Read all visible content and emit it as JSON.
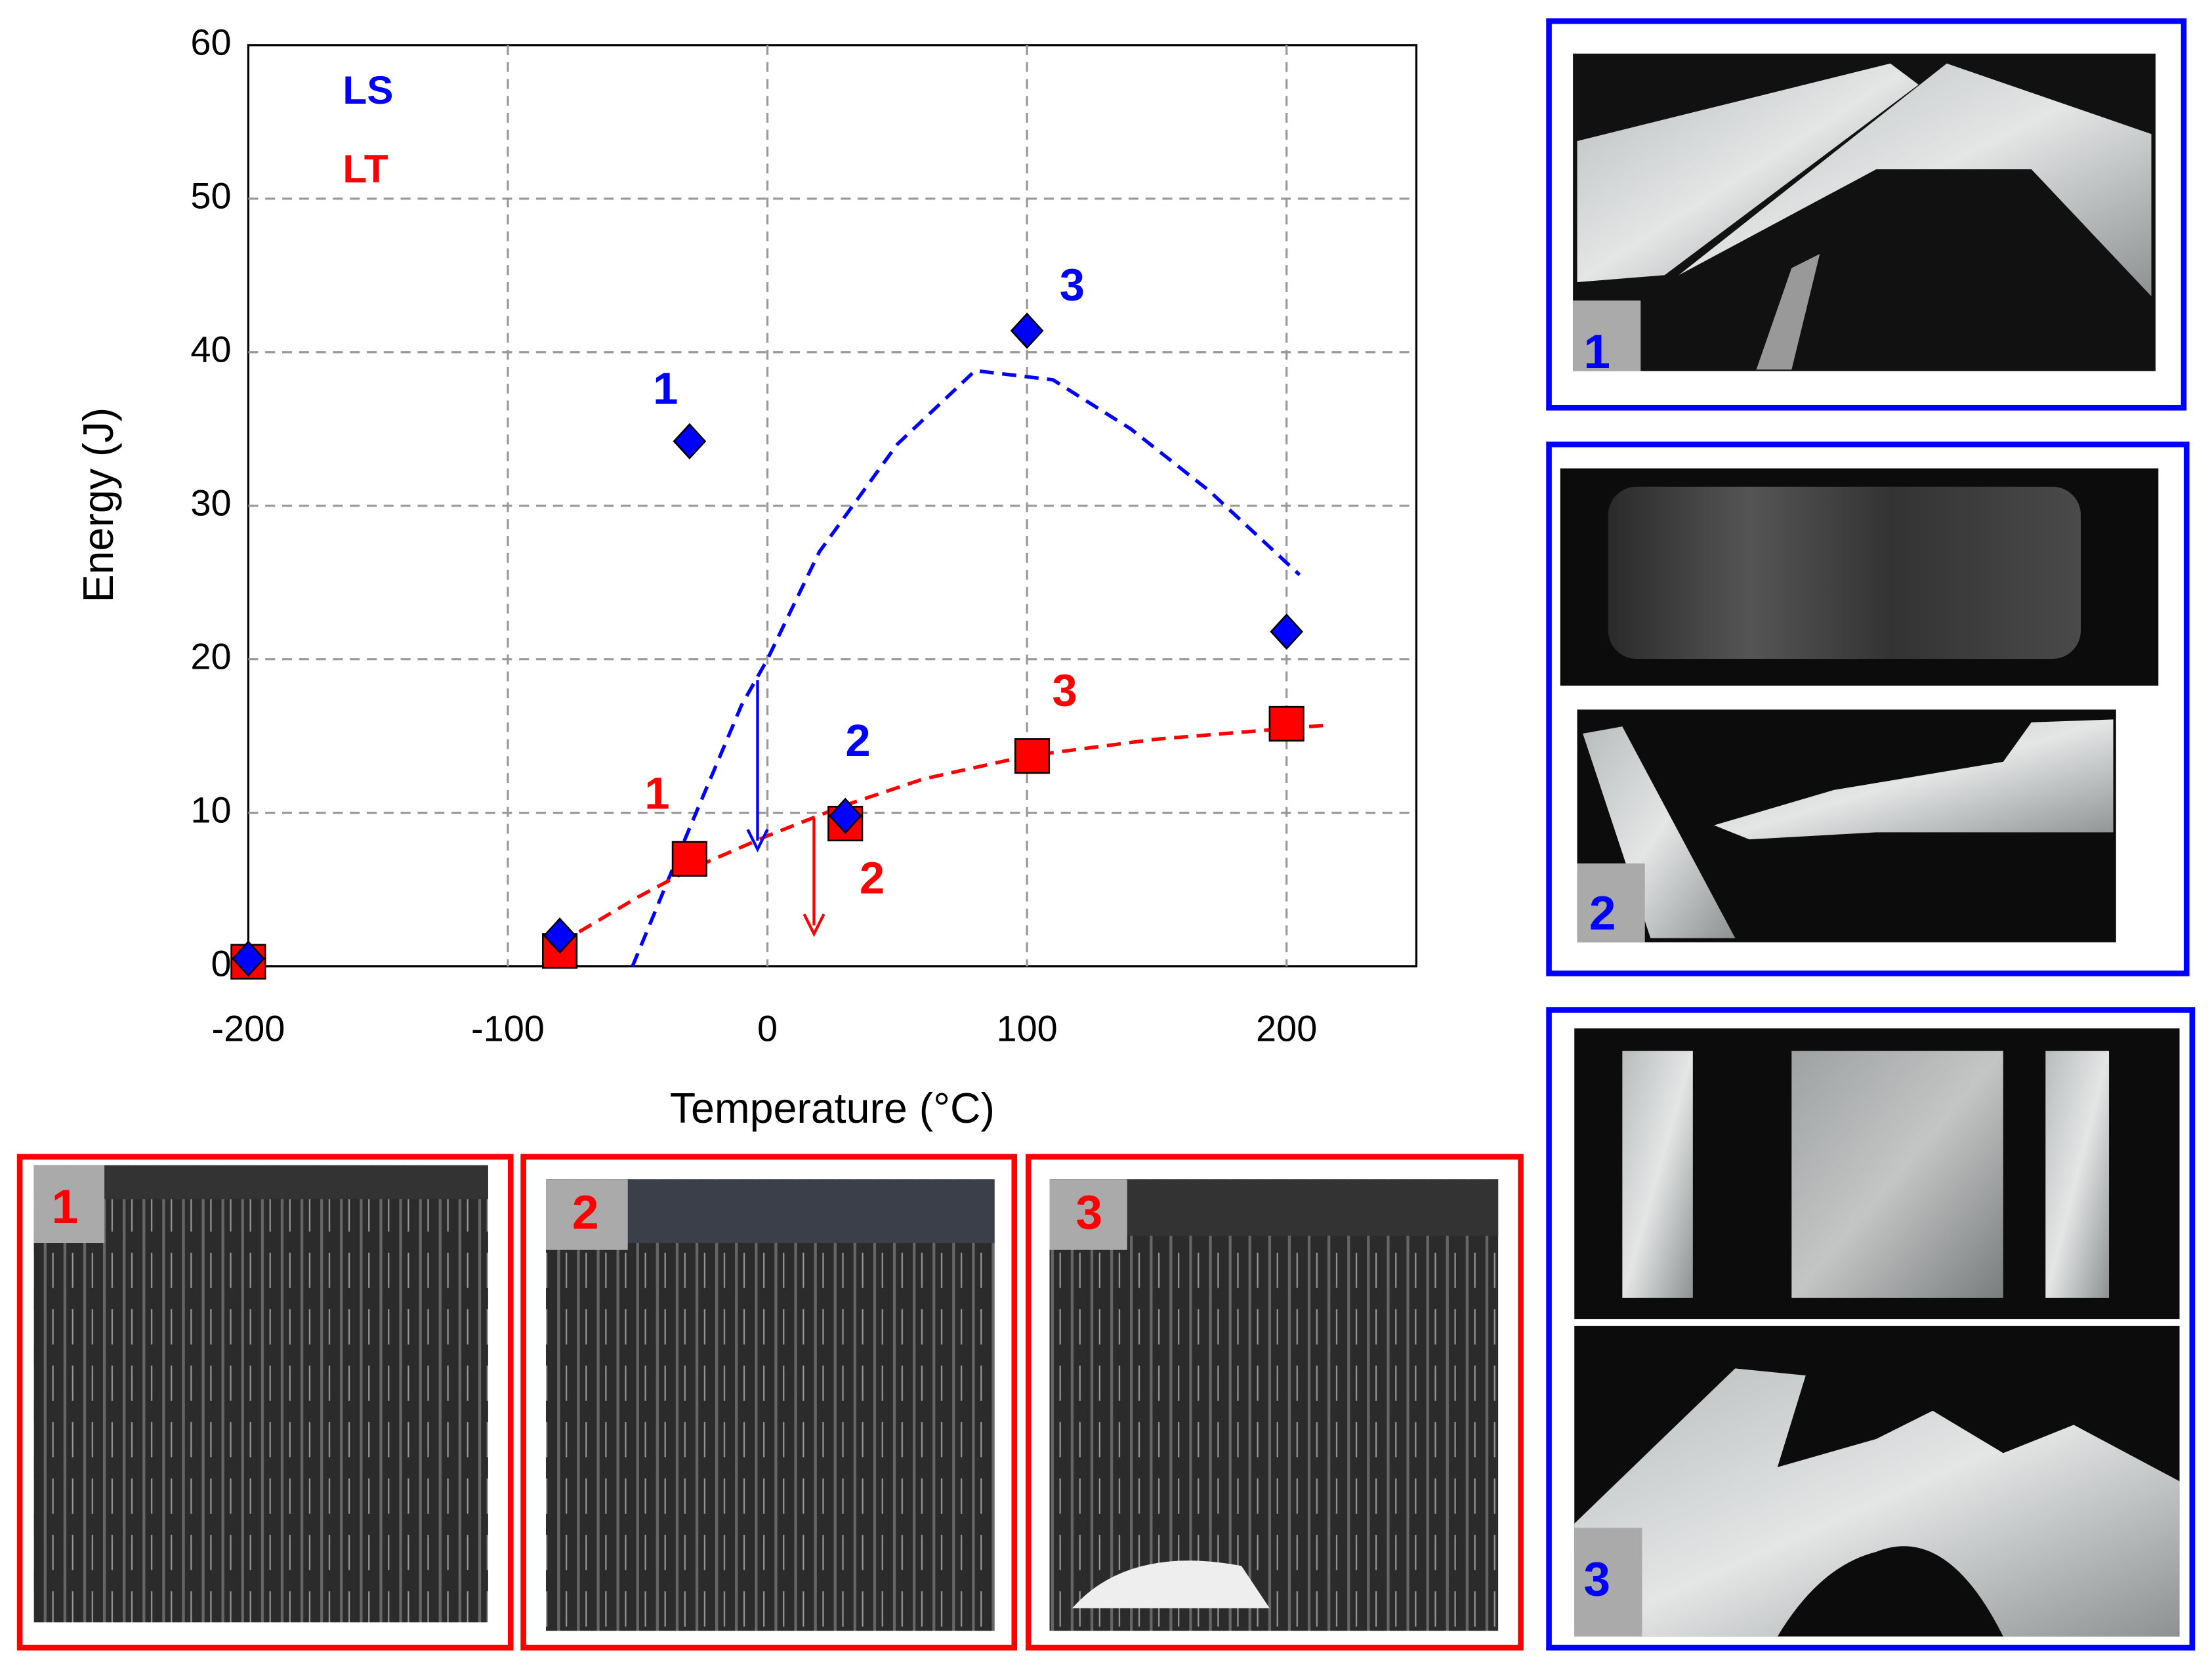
{
  "chart_data": {
    "type": "scatter",
    "x_label": "Temperature (°C)",
    "y_label": "Energy  (J)",
    "xlim": [
      -200,
      250
    ],
    "ylim": [
      0,
      60
    ],
    "xticks": [
      -200,
      -100,
      0,
      100,
      200
    ],
    "yticks": [
      0,
      10,
      20,
      30,
      40,
      50,
      60
    ],
    "grid": true,
    "series": [
      {
        "name": "LS",
        "color": "#0000ff",
        "marker": "diamond",
        "x": [
          -200,
          -80,
          -30,
          30,
          100,
          200
        ],
        "values": [
          0.5,
          2,
          34.2,
          9.8,
          41.4,
          21.8
        ],
        "point_labels": [
          null,
          null,
          "1",
          "2",
          "3",
          null
        ],
        "trend": {
          "x": [
            -52,
            -30,
            -10,
            0,
            20,
            50,
            80,
            110,
            140,
            170,
            205
          ],
          "y": [
            0,
            9,
            17,
            20,
            27,
            34,
            38.8,
            38.2,
            35,
            31,
            25.5
          ]
        }
      },
      {
        "name": "LT",
        "color": "#ff0000",
        "marker": "square",
        "x": [
          -200,
          -80,
          -30,
          30,
          102,
          200
        ],
        "values": [
          0.3,
          1,
          7,
          9.3,
          13.7,
          15.8
        ],
        "point_labels": [
          null,
          null,
          "1",
          "2",
          "3",
          null
        ],
        "trend": {
          "x": [
            -80,
            -50,
            -30,
            0,
            30,
            60,
            100,
            150,
            215
          ],
          "y": [
            1.5,
            4.5,
            6.3,
            8.5,
            10.5,
            12.2,
            13.7,
            14.8,
            15.7
          ]
        }
      }
    ]
  },
  "panels": {
    "ls": [
      "1",
      "2",
      "3"
    ],
    "lt": [
      "1",
      "2",
      "3"
    ]
  }
}
